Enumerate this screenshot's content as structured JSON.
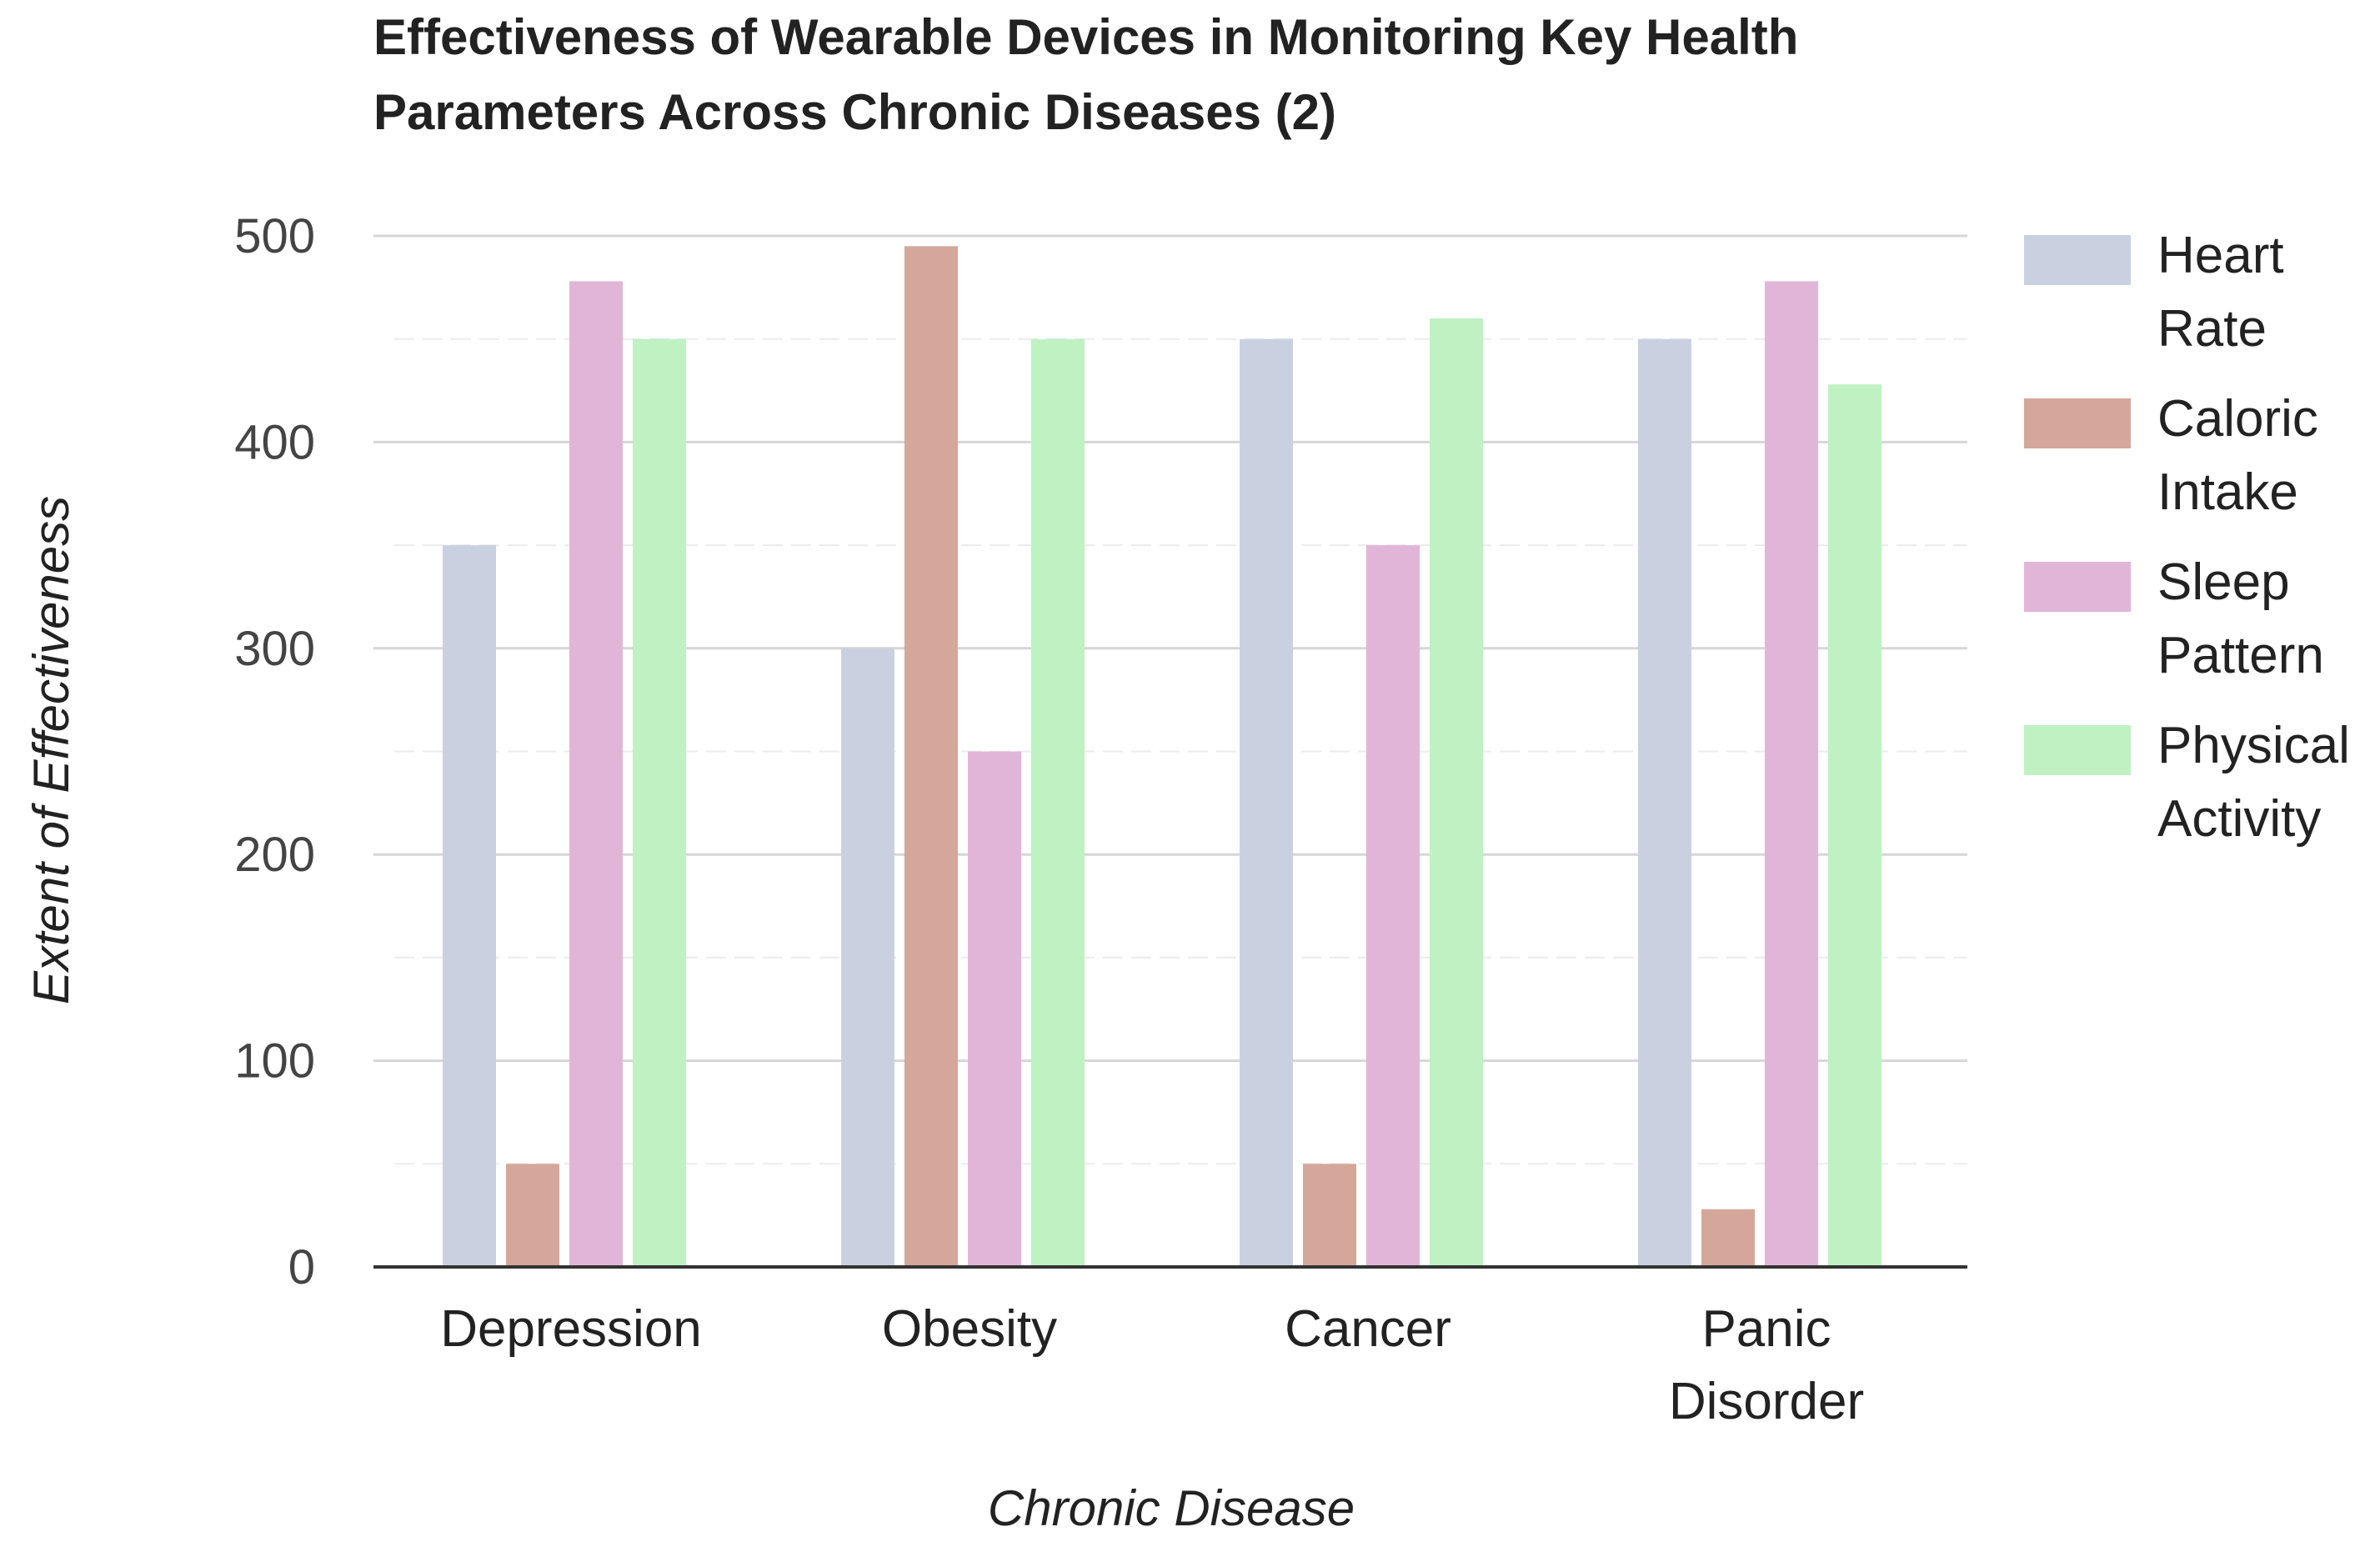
{
  "chart_data": {
    "type": "bar",
    "title": "Effectiveness of Wearable Devices in Monitoring Key Health Parameters Across Chronic Diseases (2)",
    "title_lines": [
      "Effectiveness of Wearable Devices in Monitoring Key Health",
      "Parameters Across Chronic Diseases (2)"
    ],
    "xlabel": "Chronic Disease",
    "ylabel": "Extent of Effectiveness",
    "ylim": [
      0,
      500
    ],
    "yticks": [
      0,
      100,
      200,
      300,
      400,
      500
    ],
    "grid": true,
    "legend_position": "right",
    "categories": [
      "Depression",
      "Obesity",
      "Cancer",
      "Panic Disorder"
    ],
    "category_lines": [
      [
        "Depression"
      ],
      [
        "Obesity"
      ],
      [
        "Cancer"
      ],
      [
        "Panic",
        "Disorder"
      ]
    ],
    "series": [
      {
        "name": "Heart Rate",
        "legend_lines": [
          "Heart",
          "Rate"
        ],
        "color": "#c9d1e1",
        "values": [
          350,
          300,
          450,
          450
        ]
      },
      {
        "name": "Caloric Intake",
        "legend_lines": [
          "Caloric",
          "Intake"
        ],
        "color": "#d4a79a",
        "values": [
          50,
          495,
          50,
          28
        ]
      },
      {
        "name": "Sleep Pattern",
        "legend_lines": [
          "Sleep",
          "Pattern"
        ],
        "color": "#e1b5d8",
        "values": [
          478,
          250,
          350,
          478
        ]
      },
      {
        "name": "Physical Activity",
        "legend_lines": [
          "Physical",
          "Activity"
        ],
        "color": "#bff1c3",
        "values": [
          450,
          450,
          460,
          428
        ]
      }
    ]
  }
}
